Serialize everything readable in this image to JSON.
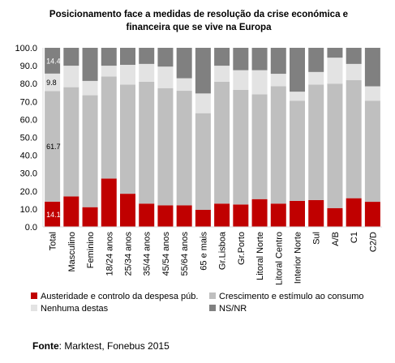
{
  "chart_data": {
    "type": "bar",
    "stacked": true,
    "title": "Posicionamento face a medidas de resolução da crise económica e financeira que se vive na Europa",
    "xlabel": "",
    "ylabel": "",
    "ylim": [
      0,
      100
    ],
    "yticks": [
      "0.0",
      "10.0",
      "20.0",
      "30.0",
      "40.0",
      "50.0",
      "60.0",
      "70.0",
      "80.0",
      "90.0",
      "100.0"
    ],
    "grid": false,
    "legend_position": "bottom",
    "categories": [
      "Total",
      "Masculino",
      "Feminino",
      "18/24 anos",
      "25/34 anos",
      "35/44 anos",
      "45/54 anos",
      "55/64 anos",
      "65 e mais",
      "Gr.Lisboa",
      "Gr.Porto",
      "Litoral Norte",
      "Litoral Centro",
      "Interior Norte",
      "Sul",
      "A/B",
      "C1",
      "C2/D"
    ],
    "series": [
      {
        "name": "Austeridade e controlo da despesa púb.",
        "color": "#c00000",
        "values": [
          14.1,
          17,
          11,
          27,
          18.5,
          13,
          12,
          12,
          9.5,
          13,
          12.5,
          15.5,
          13,
          14.5,
          15,
          10.5,
          16,
          14
        ]
      },
      {
        "name": "Crescimento e estímulo ao consumo",
        "color": "#bfbfbf",
        "values": [
          61.7,
          61,
          62.5,
          57,
          61,
          68,
          65.5,
          64,
          54,
          68,
          64,
          58.5,
          65.5,
          56,
          64.5,
          69.5,
          66,
          56.5
        ]
      },
      {
        "name": "Nenhuma destas",
        "color": "#e3e3e3",
        "values": [
          9.8,
          12,
          8,
          6,
          11,
          10,
          12,
          7,
          11,
          9,
          11,
          13.5,
          7,
          5,
          7,
          14.5,
          9,
          8
        ]
      },
      {
        "name": "NS/NR",
        "color": "#808080",
        "values": [
          14.4,
          10,
          18.5,
          10,
          9.5,
          9,
          10.5,
          17,
          25.5,
          10,
          12.5,
          12.5,
          14.5,
          24.5,
          13.5,
          5.5,
          9,
          21.5
        ]
      }
    ],
    "data_labels": [
      {
        "category": "Total",
        "series": "Austeridade e controlo da despesa púb.",
        "text": "14.1"
      },
      {
        "category": "Total",
        "series": "Crescimento e estímulo ao consumo",
        "text": "61.7"
      },
      {
        "category": "Total",
        "series": "Nenhuma destas",
        "text": "9.8"
      },
      {
        "category": "Total",
        "series": "NS/NR",
        "text": "14.4"
      }
    ]
  },
  "source": {
    "label": "Fonte",
    "text": ": Marktest, Fonebus 2015"
  }
}
